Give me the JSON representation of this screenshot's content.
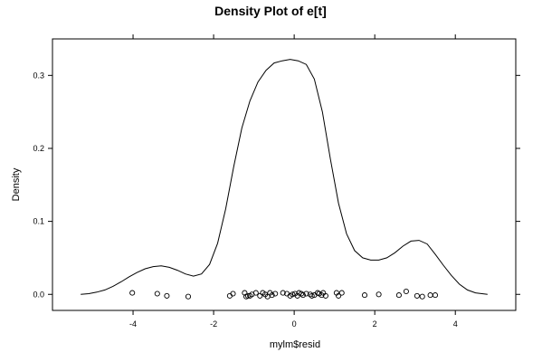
{
  "chart_data": {
    "type": "line",
    "title": "Density Plot of e[t]",
    "xlabel": "mylm$resid",
    "ylabel": "Density",
    "xlim": [
      -6.0,
      5.5
    ],
    "ylim": [
      -0.022,
      0.35
    ],
    "x_ticks": [
      -4,
      -2,
      0,
      2,
      4
    ],
    "x_tick_labels": [
      "-4",
      "-2",
      "0",
      "2",
      "4"
    ],
    "y_ticks": [
      0.0,
      0.1,
      0.2,
      0.3
    ],
    "y_tick_labels": [
      "0.0",
      "0.1",
      "0.2",
      "0.3"
    ],
    "grid": false,
    "density_curve": [
      [
        -5.3,
        0.0
      ],
      [
        -5.1,
        0.001
      ],
      [
        -4.9,
        0.003
      ],
      [
        -4.7,
        0.006
      ],
      [
        -4.5,
        0.011
      ],
      [
        -4.3,
        0.017
      ],
      [
        -4.1,
        0.024
      ],
      [
        -3.9,
        0.03
      ],
      [
        -3.7,
        0.035
      ],
      [
        -3.5,
        0.038
      ],
      [
        -3.3,
        0.039
      ],
      [
        -3.1,
        0.037
      ],
      [
        -2.9,
        0.033
      ],
      [
        -2.7,
        0.028
      ],
      [
        -2.5,
        0.025
      ],
      [
        -2.3,
        0.028
      ],
      [
        -2.1,
        0.041
      ],
      [
        -1.9,
        0.07
      ],
      [
        -1.7,
        0.117
      ],
      [
        -1.5,
        0.175
      ],
      [
        -1.3,
        0.228
      ],
      [
        -1.1,
        0.265
      ],
      [
        -0.9,
        0.291
      ],
      [
        -0.7,
        0.307
      ],
      [
        -0.5,
        0.317
      ],
      [
        -0.3,
        0.32
      ],
      [
        -0.1,
        0.322
      ],
      [
        0.1,
        0.32
      ],
      [
        0.3,
        0.315
      ],
      [
        0.5,
        0.295
      ],
      [
        0.7,
        0.25
      ],
      [
        0.9,
        0.185
      ],
      [
        1.1,
        0.125
      ],
      [
        1.3,
        0.083
      ],
      [
        1.5,
        0.06
      ],
      [
        1.7,
        0.05
      ],
      [
        1.9,
        0.047
      ],
      [
        2.1,
        0.047
      ],
      [
        2.3,
        0.05
      ],
      [
        2.5,
        0.057
      ],
      [
        2.7,
        0.066
      ],
      [
        2.9,
        0.073
      ],
      [
        3.1,
        0.074
      ],
      [
        3.3,
        0.069
      ],
      [
        3.5,
        0.055
      ],
      [
        3.7,
        0.04
      ],
      [
        3.9,
        0.026
      ],
      [
        4.1,
        0.014
      ],
      [
        4.3,
        0.006
      ],
      [
        4.5,
        0.002
      ],
      [
        4.8,
        0.0
      ]
    ],
    "rug_points": [
      [
        -4.02,
        0.002
      ],
      [
        -3.4,
        0.001
      ],
      [
        -3.16,
        -0.002
      ],
      [
        -2.63,
        -0.003
      ],
      [
        -1.6,
        -0.002
      ],
      [
        -1.52,
        0.001
      ],
      [
        -1.23,
        0.002
      ],
      [
        -1.19,
        -0.003
      ],
      [
        -1.15,
        -0.002
      ],
      [
        -1.1,
        -0.002
      ],
      [
        -1.05,
        0.0
      ],
      [
        -0.95,
        0.002
      ],
      [
        -0.85,
        -0.002
      ],
      [
        -0.78,
        0.002
      ],
      [
        -0.72,
        0.0
      ],
      [
        -0.66,
        -0.003
      ],
      [
        -0.6,
        0.002
      ],
      [
        -0.55,
        -0.001
      ],
      [
        -0.47,
        0.001
      ],
      [
        -0.28,
        0.002
      ],
      [
        -0.18,
        0.001
      ],
      [
        -0.1,
        -0.002
      ],
      [
        -0.04,
        0.0
      ],
      [
        0.02,
        0.001
      ],
      [
        0.08,
        -0.002
      ],
      [
        0.12,
        0.002
      ],
      [
        0.18,
        0.001
      ],
      [
        0.22,
        -0.001
      ],
      [
        0.3,
        0.001
      ],
      [
        0.4,
        0.0
      ],
      [
        0.44,
        -0.002
      ],
      [
        0.5,
        -0.001
      ],
      [
        0.58,
        0.002
      ],
      [
        0.62,
        0.001
      ],
      [
        0.68,
        -0.001
      ],
      [
        0.72,
        0.002
      ],
      [
        0.78,
        -0.002
      ],
      [
        1.05,
        0.002
      ],
      [
        1.1,
        -0.002
      ],
      [
        1.18,
        0.002
      ],
      [
        1.75,
        -0.001
      ],
      [
        2.1,
        0.0
      ],
      [
        2.6,
        -0.001
      ],
      [
        2.78,
        0.004
      ],
      [
        3.05,
        -0.002
      ],
      [
        3.18,
        -0.003
      ],
      [
        3.38,
        -0.001
      ],
      [
        3.5,
        -0.001
      ]
    ]
  }
}
